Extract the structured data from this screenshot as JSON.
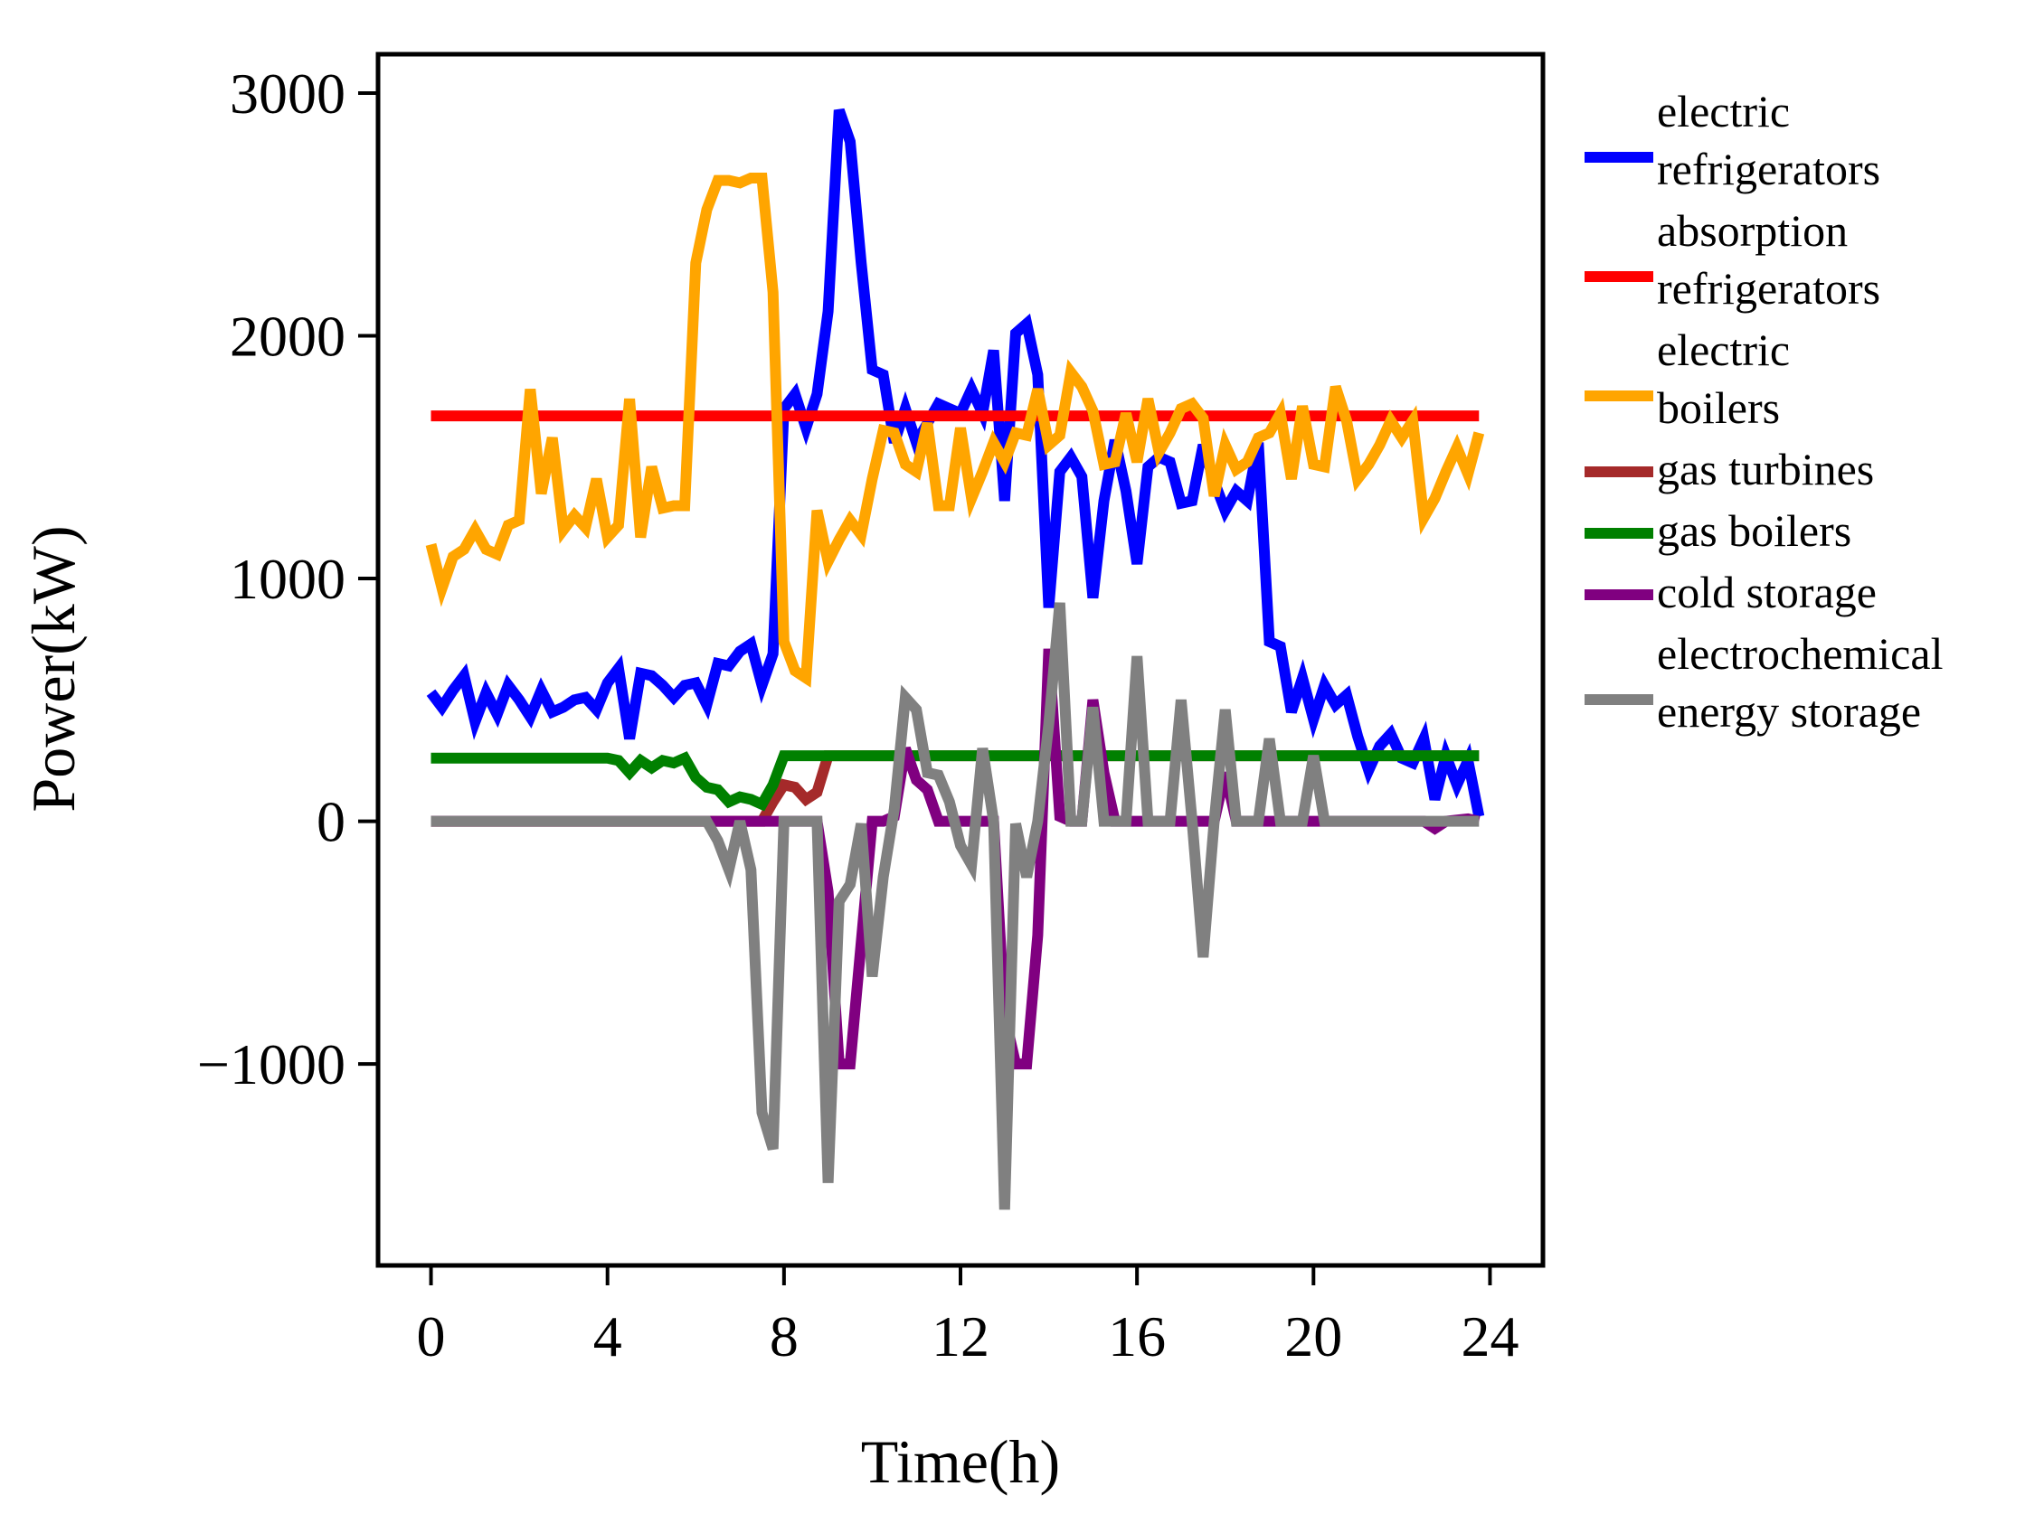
{
  "chart_data": {
    "type": "line",
    "xlabel": "Time(h)",
    "ylabel": "Power(kW)",
    "xlim": [
      -1.2,
      25.2
    ],
    "ylim": [
      -1830,
      3160
    ],
    "xticks": [
      0,
      4,
      8,
      12,
      16,
      20,
      24
    ],
    "xtick_labels": [
      "0",
      "4",
      "8",
      "12",
      "16",
      "20",
      "24"
    ],
    "yticks": [
      -1000,
      0,
      1000,
      2000,
      3000
    ],
    "ytick_labels": [
      "−1000",
      "0",
      "1000",
      "2000",
      "3000"
    ],
    "legend_position": "outside-right",
    "series": [
      {
        "name": "electric refrigerators",
        "legend_lines": [
          "electric",
          "refrigerators"
        ],
        "color": "#0000ff",
        "x": [
          0,
          0.25,
          0.5,
          0.75,
          1,
          1.25,
          1.5,
          1.75,
          2,
          2.25,
          2.5,
          2.75,
          3,
          3.25,
          3.5,
          3.75,
          4,
          4.25,
          4.5,
          4.75,
          5,
          5.25,
          5.5,
          5.75,
          6,
          6.25,
          6.5,
          6.75,
          7,
          7.25,
          7.5,
          7.75,
          8,
          8.25,
          8.5,
          8.75,
          9,
          9.25,
          9.5,
          9.75,
          10,
          10.25,
          10.5,
          10.75,
          11,
          11.25,
          11.5,
          11.75,
          12,
          12.25,
          12.5,
          12.75,
          13,
          13.25,
          13.5,
          13.75,
          14,
          14.25,
          14.5,
          14.75,
          15,
          15.25,
          15.5,
          15.75,
          16,
          16.25,
          16.5,
          16.75,
          17,
          17.25,
          17.5,
          17.75,
          18,
          18.25,
          18.5,
          18.75,
          19,
          19.25,
          19.5,
          19.75,
          20,
          20.25,
          20.5,
          20.75,
          21,
          21.25,
          21.5,
          21.75,
          22,
          22.25,
          22.5,
          22.75,
          23,
          23.25,
          23.5,
          23.75
        ],
        "values": [
          530,
          470,
          540,
          600,
          410,
          530,
          440,
          560,
          500,
          430,
          540,
          450,
          470,
          500,
          510,
          460,
          570,
          630,
          340,
          610,
          600,
          560,
          510,
          560,
          570,
          480,
          650,
          640,
          700,
          730,
          560,
          690,
          1700,
          1760,
          1620,
          1760,
          2100,
          2930,
          2800,
          2300,
          1860,
          1840,
          1560,
          1700,
          1560,
          1640,
          1720,
          1700,
          1680,
          1780,
          1680,
          1940,
          1320,
          2010,
          2050,
          1840,
          880,
          1440,
          1500,
          1420,
          920,
          1320,
          1570,
          1360,
          1060,
          1460,
          1500,
          1480,
          1310,
          1320,
          1550,
          1400,
          1280,
          1360,
          1320,
          1560,
          740,
          720,
          450,
          590,
          420,
          560,
          480,
          520,
          350,
          210,
          310,
          360,
          260,
          240,
          340,
          90,
          270,
          150,
          250,
          20
        ]
      },
      {
        "name": "absorption refrigerators",
        "legend_lines": [
          "absorption",
          "refrigerators"
        ],
        "color": "#ff0000",
        "x": [
          0,
          23.75
        ],
        "values": [
          1670,
          1670
        ]
      },
      {
        "name": "electric boilers",
        "legend_lines": [
          "electric",
          "boilers"
        ],
        "color": "#ffa500",
        "x": [
          0,
          0.25,
          0.5,
          0.75,
          1,
          1.25,
          1.5,
          1.75,
          2,
          2.25,
          2.5,
          2.75,
          3,
          3.25,
          3.5,
          3.75,
          4,
          4.25,
          4.5,
          4.75,
          5,
          5.25,
          5.5,
          5.75,
          6,
          6.25,
          6.5,
          6.75,
          7,
          7.25,
          7.5,
          7.75,
          8,
          8.25,
          8.5,
          8.75,
          9,
          9.25,
          9.5,
          9.75,
          10,
          10.25,
          10.5,
          10.75,
          11,
          11.25,
          11.5,
          11.75,
          12,
          12.25,
          12.5,
          12.75,
          13,
          13.25,
          13.5,
          13.75,
          14,
          14.25,
          14.5,
          14.75,
          15,
          15.25,
          15.5,
          15.75,
          16,
          16.25,
          16.5,
          16.75,
          17,
          17.25,
          17.5,
          17.75,
          18,
          18.25,
          18.5,
          18.75,
          19,
          19.25,
          19.5,
          19.75,
          20,
          20.25,
          20.5,
          20.75,
          21,
          21.25,
          21.5,
          21.75,
          22,
          22.25,
          22.5,
          22.75,
          23,
          23.25,
          23.5,
          23.75
        ],
        "values": [
          1140,
          960,
          1090,
          1120,
          1200,
          1120,
          1100,
          1220,
          1240,
          1780,
          1350,
          1580,
          1200,
          1260,
          1210,
          1410,
          1170,
          1220,
          1740,
          1170,
          1460,
          1290,
          1300,
          1300,
          2300,
          2520,
          2640,
          2640,
          2630,
          2650,
          2650,
          2180,
          740,
          620,
          590,
          1280,
          1070,
          1160,
          1240,
          1180,
          1410,
          1610,
          1600,
          1470,
          1440,
          1640,
          1300,
          1300,
          1620,
          1330,
          1440,
          1560,
          1480,
          1600,
          1590,
          1780,
          1550,
          1590,
          1850,
          1790,
          1690,
          1470,
          1480,
          1680,
          1480,
          1740,
          1520,
          1600,
          1700,
          1720,
          1660,
          1340,
          1550,
          1450,
          1480,
          1580,
          1600,
          1680,
          1410,
          1710,
          1470,
          1460,
          1790,
          1650,
          1410,
          1470,
          1550,
          1650,
          1580,
          1650,
          1250,
          1330,
          1440,
          1540,
          1430,
          1600
        ]
      },
      {
        "name": "gas turbines",
        "legend_lines": [
          "gas turbines"
        ],
        "color": "#a52a2a",
        "x": [
          0,
          6.75,
          7,
          7.5,
          7.75,
          8,
          8.25,
          8.5,
          8.75,
          9,
          23.75
        ],
        "values": [
          0,
          0,
          0,
          0,
          80,
          150,
          140,
          90,
          120,
          270,
          270
        ]
      },
      {
        "name": "gas boilers",
        "legend_lines": [
          "gas boilers"
        ],
        "color": "#008000",
        "x": [
          0,
          0.5,
          1,
          1.5,
          2,
          2.5,
          3,
          3.5,
          4,
          4.25,
          4.5,
          4.75,
          5,
          5.25,
          5.5,
          5.75,
          6,
          6.25,
          6.5,
          6.75,
          7,
          7.25,
          7.5,
          7.75,
          8,
          8.25,
          23.75
        ],
        "values": [
          260,
          260,
          260,
          260,
          260,
          260,
          260,
          260,
          260,
          250,
          200,
          250,
          220,
          250,
          240,
          260,
          180,
          140,
          130,
          80,
          100,
          90,
          70,
          150,
          270,
          270,
          270
        ]
      },
      {
        "name": "cold storage",
        "legend_lines": [
          "cold storage"
        ],
        "color": "#800080",
        "x": [
          0,
          8.75,
          9,
          9.25,
          9.5,
          9.75,
          10,
          10.25,
          10.5,
          10.75,
          11,
          11.25,
          11.5,
          11.75,
          12,
          12.5,
          12.75,
          13,
          13.25,
          13.5,
          13.75,
          14,
          14.25,
          14.5,
          14.75,
          15,
          15.25,
          15.5,
          15.75,
          17.75,
          18,
          18.25,
          18.5,
          19,
          19.5,
          20,
          20.5,
          21,
          21.5,
          22,
          22.5,
          22.75,
          23,
          23.5,
          23.75
        ],
        "values": [
          0,
          0,
          -290,
          -1000,
          -1000,
          -500,
          0,
          0,
          20,
          300,
          170,
          130,
          0,
          0,
          0,
          0,
          0,
          -800,
          -1000,
          -1000,
          -470,
          710,
          20,
          0,
          0,
          500,
          200,
          0,
          0,
          0,
          200,
          0,
          0,
          0,
          0,
          0,
          0,
          0,
          0,
          0,
          0,
          -30,
          0,
          10,
          0
        ]
      },
      {
        "name": "electrochemical energy storage",
        "legend_lines": [
          "electrochemical",
          "energy storage"
        ],
        "color": "#808080",
        "x": [
          0,
          6.25,
          6.5,
          6.75,
          7,
          7.25,
          7.5,
          7.75,
          8,
          8.25,
          8.5,
          8.75,
          9,
          9.25,
          9.5,
          9.75,
          10,
          10.25,
          10.5,
          10.75,
          11,
          11.25,
          11.5,
          11.75,
          12,
          12.25,
          12.5,
          12.75,
          13,
          13.25,
          13.5,
          13.75,
          14,
          14.25,
          14.5,
          14.75,
          15,
          15.25,
          15.5,
          15.75,
          16,
          16.25,
          16.5,
          16.75,
          17,
          17.25,
          17.5,
          17.75,
          18,
          18.25,
          18.5,
          18.75,
          19,
          19.25,
          19.5,
          19.75,
          20,
          20.25,
          20.5,
          23.75
        ],
        "values": [
          0,
          0,
          -80,
          -200,
          0,
          -200,
          -1200,
          -1350,
          0,
          0,
          0,
          0,
          -1490,
          -330,
          -260,
          -10,
          -640,
          -230,
          50,
          510,
          460,
          200,
          190,
          80,
          -100,
          -180,
          300,
          0,
          -1600,
          -10,
          -230,
          0,
          400,
          900,
          0,
          0,
          470,
          0,
          0,
          0,
          680,
          0,
          0,
          0,
          500,
          0,
          -560,
          0,
          460,
          0,
          0,
          0,
          340,
          0,
          0,
          0,
          270,
          0,
          0,
          0
        ]
      }
    ]
  }
}
